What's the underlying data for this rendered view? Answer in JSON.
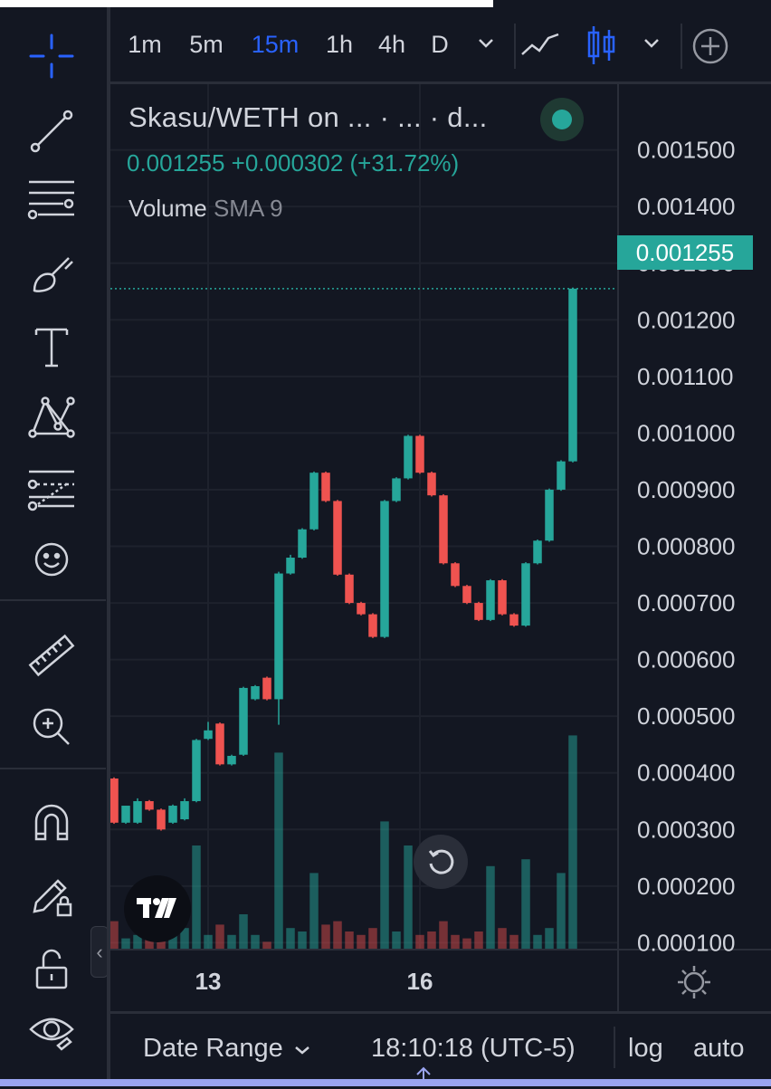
{
  "toolbar": {
    "tools": [
      {
        "name": "crosshair-icon"
      },
      {
        "name": "trend-line-icon"
      },
      {
        "name": "fib-levels-icon"
      },
      {
        "name": "brush-icon"
      },
      {
        "name": "text-icon"
      },
      {
        "name": "pattern-icon"
      },
      {
        "name": "forecast-icon"
      },
      {
        "name": "emoji-icon"
      },
      {
        "name": "ruler-icon"
      },
      {
        "name": "zoom-in-icon"
      },
      {
        "name": "magnet-icon"
      },
      {
        "name": "lock-drawing-icon"
      },
      {
        "name": "unlock-icon"
      },
      {
        "name": "eye-icon"
      }
    ],
    "active_color": "#2962ff",
    "collapse_glyph": "‹"
  },
  "intervals": {
    "items": [
      {
        "label": "1m"
      },
      {
        "label": "5m"
      },
      {
        "label": "15m",
        "active": true
      },
      {
        "label": "1h"
      },
      {
        "label": "4h"
      },
      {
        "label": "D"
      }
    ]
  },
  "legend": {
    "title": "Skasu/WETH on ...  ·  ...  ·  d...",
    "price_line": "0.001255  +0.000302 (+31.72%)",
    "volume_name": "Volume",
    "volume_sub": "SMA 9"
  },
  "last_price_label": "0.001255",
  "bottom": {
    "date_range": "Date Range",
    "time": "18:10:18 (UTC-5)",
    "log": "log",
    "auto": "auto"
  },
  "colors": {
    "background": "#131722",
    "up": "#26a69a",
    "down": "#ef5350",
    "grid": "#1e222d",
    "accent": "#2962ff"
  },
  "chart_data": {
    "type": "candlestick",
    "y_tick_labels": [
      "0.001500",
      "0.001400",
      "0.001300",
      "0.001200",
      "0.001100",
      "0.001000",
      "0.000900",
      "0.000800",
      "0.000700",
      "0.000600",
      "0.000500",
      "0.000400",
      "0.000300",
      "0.000200",
      "0.000100"
    ],
    "y_ticks": [
      0.0015,
      0.0014,
      0.0013,
      0.0012,
      0.0011,
      0.001,
      0.0009,
      0.0008,
      0.0007,
      0.0006,
      0.0005,
      0.0004,
      0.0003,
      0.0002,
      0.0001
    ],
    "ylim": [
      8.95e-05,
      0.001616
    ],
    "x_tick_labels": [
      "13",
      "16"
    ],
    "x_tick_index": [
      8,
      26
    ],
    "last_price": 0.001255,
    "candles": [
      {
        "o": 0.00039,
        "h": 0.000392,
        "c": 0.000312,
        "l": 0.00031
      },
      {
        "o": 0.000312,
        "h": 0.000342,
        "c": 0.000342,
        "l": 0.00031
      },
      {
        "o": 0.000312,
        "h": 0.000355,
        "c": 0.00035,
        "l": 0.00031
      },
      {
        "o": 0.00035,
        "h": 0.000352,
        "c": 0.000335,
        "l": 0.000333
      },
      {
        "o": 0.000335,
        "h": 0.000337,
        "c": 0.0003,
        "l": 0.000298
      },
      {
        "o": 0.000312,
        "h": 0.000344,
        "c": 0.000342,
        "l": 0.00031
      },
      {
        "o": 0.000318,
        "h": 0.000355,
        "c": 0.00035,
        "l": 0.000316
      },
      {
        "o": 0.00035,
        "h": 0.00046,
        "c": 0.000458,
        "l": 0.000348
      },
      {
        "o": 0.00046,
        "h": 0.00049,
        "c": 0.000475,
        "l": 0.000458
      },
      {
        "o": 0.000487,
        "h": 0.000489,
        "c": 0.000415,
        "l": 0.000413
      },
      {
        "o": 0.000415,
        "h": 0.000432,
        "c": 0.00043,
        "l": 0.000413
      },
      {
        "o": 0.000432,
        "h": 0.000552,
        "c": 0.00055,
        "l": 0.00043
      },
      {
        "o": 0.00053,
        "h": 0.000555,
        "c": 0.000553,
        "l": 0.000528
      },
      {
        "o": 0.000568,
        "h": 0.00057,
        "c": 0.00053,
        "l": 0.000528
      },
      {
        "o": 0.00053,
        "h": 0.000755,
        "c": 0.000752,
        "l": 0.000485
      },
      {
        "o": 0.000752,
        "h": 0.000785,
        "c": 0.00078,
        "l": 0.00075
      },
      {
        "o": 0.00078,
        "h": 0.000832,
        "c": 0.00083,
        "l": 0.000778
      },
      {
        "o": 0.00083,
        "h": 0.000932,
        "c": 0.00093,
        "l": 0.000828
      },
      {
        "o": 0.00093,
        "h": 0.000932,
        "c": 0.00088,
        "l": 0.000878
      },
      {
        "o": 0.00088,
        "h": 0.000882,
        "c": 0.00075,
        "l": 0.000748
      },
      {
        "o": 0.00075,
        "h": 0.000752,
        "c": 0.0007,
        "l": 0.000698
      },
      {
        "o": 0.0007,
        "h": 0.000702,
        "c": 0.00068,
        "l": 0.000678
      },
      {
        "o": 0.00068,
        "h": 0.000682,
        "c": 0.00064,
        "l": 0.000638
      },
      {
        "o": 0.00064,
        "h": 0.000882,
        "c": 0.00088,
        "l": 0.000638
      },
      {
        "o": 0.00088,
        "h": 0.000922,
        "c": 0.00092,
        "l": 0.000878
      },
      {
        "o": 0.00092,
        "h": 0.000997,
        "c": 0.000995,
        "l": 0.000918
      },
      {
        "o": 0.000995,
        "h": 0.000997,
        "c": 0.00093,
        "l": 0.000928
      },
      {
        "o": 0.00093,
        "h": 0.000932,
        "c": 0.00089,
        "l": 0.000888
      },
      {
        "o": 0.00089,
        "h": 0.000892,
        "c": 0.00077,
        "l": 0.000768
      },
      {
        "o": 0.00077,
        "h": 0.000772,
        "c": 0.00073,
        "l": 0.000728
      },
      {
        "o": 0.00073,
        "h": 0.000732,
        "c": 0.0007,
        "l": 0.000698
      },
      {
        "o": 0.0007,
        "h": 0.000702,
        "c": 0.00067,
        "l": 0.000668
      },
      {
        "o": 0.00067,
        "h": 0.000742,
        "c": 0.00074,
        "l": 0.000668
      },
      {
        "o": 0.00074,
        "h": 0.000742,
        "c": 0.00068,
        "l": 0.000678
      },
      {
        "o": 0.00068,
        "h": 0.000682,
        "c": 0.00066,
        "l": 0.000658
      },
      {
        "o": 0.00066,
        "h": 0.000772,
        "c": 0.00077,
        "l": 0.000658
      },
      {
        "o": 0.00077,
        "h": 0.000812,
        "c": 0.00081,
        "l": 0.000768
      },
      {
        "o": 0.00081,
        "h": 0.000902,
        "c": 0.0009,
        "l": 0.000808
      },
      {
        "o": 0.0009,
        "h": 0.000952,
        "c": 0.00095,
        "l": 0.000898
      },
      {
        "o": 0.00095,
        "h": 0.001257,
        "c": 0.001255,
        "l": 0.000948
      }
    ],
    "volume_fraction": [
      0.08,
      0.03,
      0.04,
      0.05,
      0.04,
      0.05,
      0.06,
      0.3,
      0.04,
      0.07,
      0.04,
      0.1,
      0.04,
      0.02,
      0.57,
      0.06,
      0.05,
      0.22,
      0.07,
      0.08,
      0.05,
      0.04,
      0.06,
      0.37,
      0.05,
      0.3,
      0.04,
      0.05,
      0.08,
      0.04,
      0.03,
      0.05,
      0.24,
      0.06,
      0.04,
      0.26,
      0.04,
      0.06,
      0.22,
      0.62
    ]
  }
}
